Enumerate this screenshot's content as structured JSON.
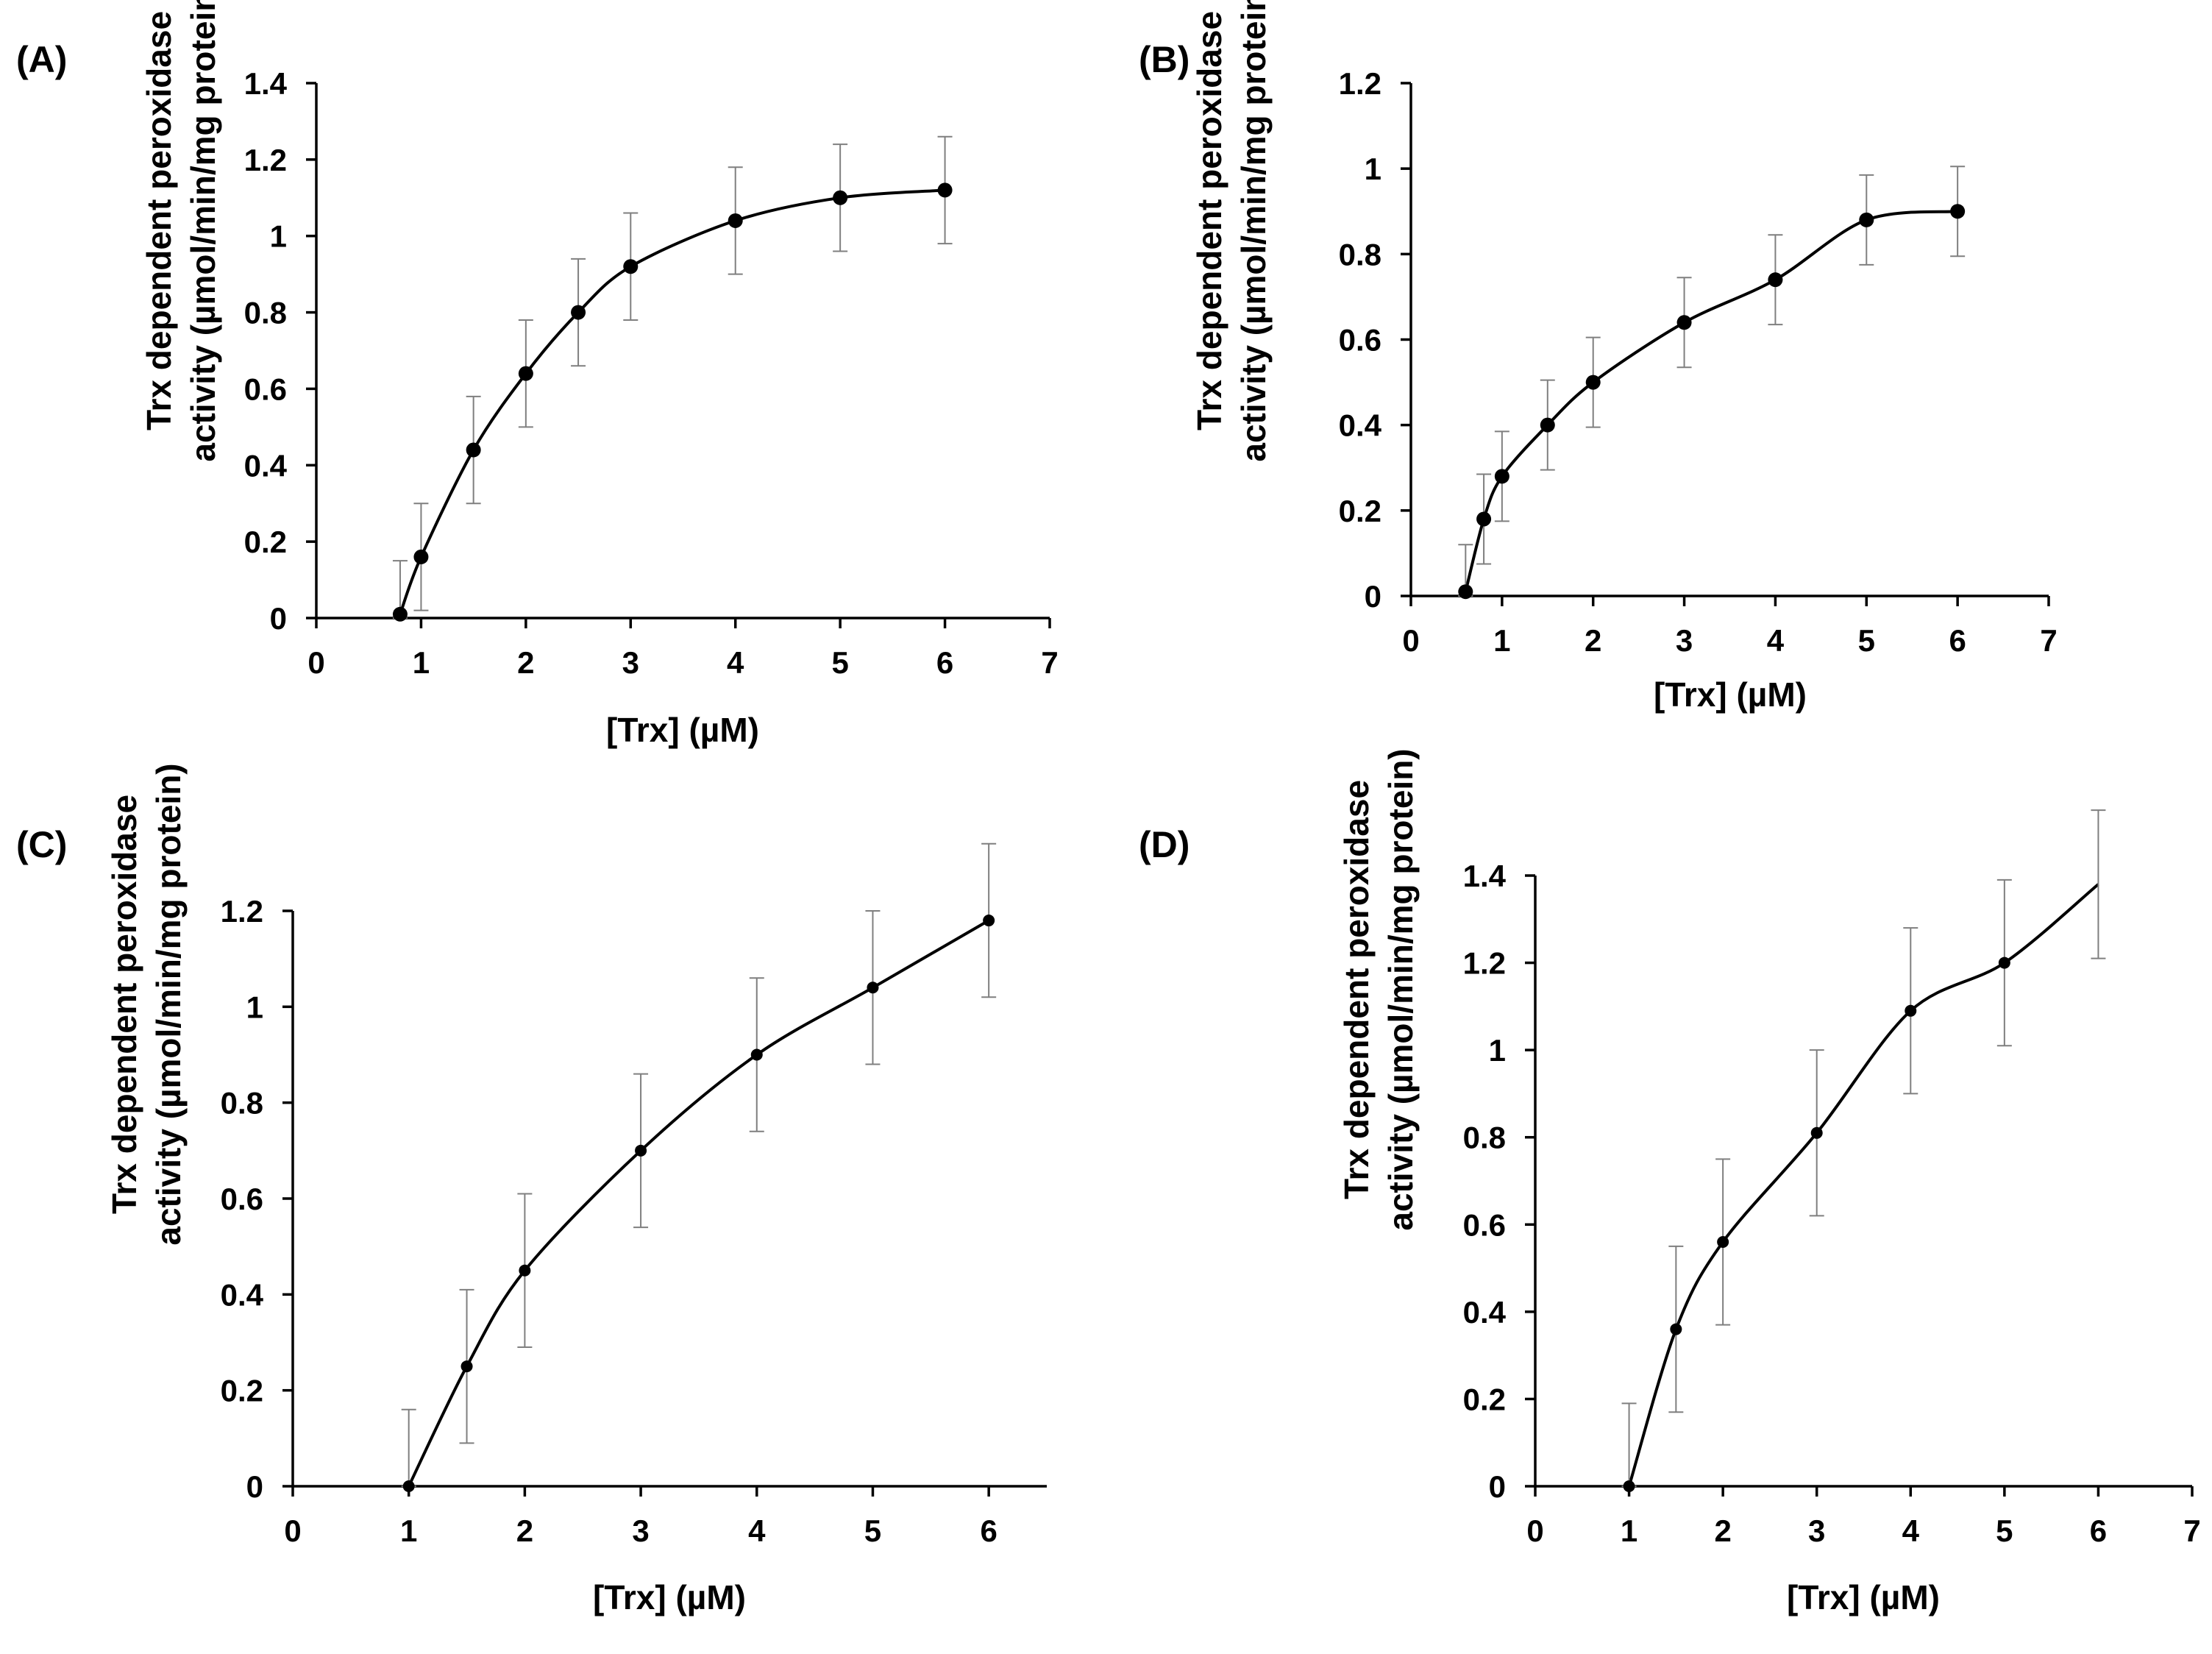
{
  "chart_data": [
    {
      "type": "scatter",
      "panel_label": "(A)",
      "xlabel": "[Trx] (µM)",
      "ylabel": [
        "Trx dependent peroxidase",
        "activity (µmol/min/mg protein)"
      ],
      "xlim": [
        0,
        7
      ],
      "ylim": [
        0,
        1.4
      ],
      "xticks": [
        "0",
        "1",
        "2",
        "3",
        "4",
        "5",
        "6",
        "7"
      ],
      "yticks": [
        "0",
        "0.2",
        "0.4",
        "0.6",
        "0.8",
        "1",
        "1.2",
        "1.4"
      ],
      "x": [
        0.8,
        1,
        1.5,
        2,
        2.5,
        3,
        4,
        5,
        6
      ],
      "y": [
        0.01,
        0.16,
        0.44,
        0.64,
        0.8,
        0.92,
        1.04,
        1.1,
        1.12
      ],
      "error": [
        0.14,
        0.14,
        0.14,
        0.14,
        0.14,
        0.14,
        0.14,
        0.14,
        0.14
      ],
      "trendline": "smooth"
    },
    {
      "type": "scatter",
      "panel_label": "(B)",
      "xlabel": "[Trx] (µM)",
      "ylabel": [
        "Trx dependent peroxidase",
        "activity (µmol/min/mg protein)"
      ],
      "xlim": [
        0,
        7
      ],
      "ylim": [
        0,
        1.2
      ],
      "xticks": [
        "0",
        "1",
        "2",
        "3",
        "4",
        "5",
        "6",
        "7"
      ],
      "yticks": [
        "0",
        "0.2",
        "0.4",
        "0.6",
        "0.8",
        "1",
        "1.2"
      ],
      "x": [
        0.6,
        0.8,
        1,
        1.5,
        2,
        3,
        4,
        5,
        6
      ],
      "y": [
        0.01,
        0.18,
        0.28,
        0.4,
        0.5,
        0.64,
        0.74,
        0.88,
        0.9
      ],
      "error": [
        0.11,
        0.105,
        0.105,
        0.105,
        0.105,
        0.105,
        0.105,
        0.105,
        0.105
      ],
      "trendline": "logarithmic"
    },
    {
      "type": "scatter",
      "panel_label": "(C)",
      "xlabel": "[Trx] (µM)",
      "ylabel": [
        "Trx dependent peroxidase",
        "activity (µmol/min/mg protein)"
      ],
      "xlim": [
        0,
        6.5
      ],
      "ylim": [
        0,
        1.2
      ],
      "xticks": [
        "0",
        "1",
        "2",
        "3",
        "4",
        "5",
        "6"
      ],
      "yticks": [
        "0",
        "0.2",
        "0.4",
        "0.6",
        "0.8",
        "1",
        "1.2"
      ],
      "x": [
        1,
        1.5,
        2,
        3,
        4,
        5,
        6
      ],
      "y": [
        0,
        0.25,
        0.45,
        0.7,
        0.9,
        1.04,
        1.18
      ],
      "error": [
        0.16,
        0.16,
        0.16,
        0.16,
        0.16,
        0.16,
        0.16
      ],
      "trendline": "smooth"
    },
    {
      "type": "scatter",
      "panel_label": "(D)",
      "xlabel": "[Trx] (µM)",
      "ylabel": [
        "Trx dependent peroxidase",
        "activity (µmol/min/mg protein)"
      ],
      "xlim": [
        0,
        7
      ],
      "ylim": [
        0,
        1.4
      ],
      "xticks": [
        "0",
        "1",
        "2",
        "3",
        "4",
        "5",
        "6",
        "7"
      ],
      "yticks": [
        "0",
        "0.2",
        "0.4",
        "0.6",
        "0.8",
        "1",
        "1.2",
        "1.4"
      ],
      "x": [
        1,
        1.5,
        2,
        3,
        4,
        5
      ],
      "y": [
        0,
        0.36,
        0.56,
        0.81,
        1.09,
        1.2
      ],
      "error": [
        0.19,
        0.19,
        0.19,
        0.19,
        0.19,
        0.19
      ],
      "fit_end": [
        6,
        1.38
      ],
      "fit_end_error": 0.17,
      "trendline": "smooth"
    }
  ]
}
